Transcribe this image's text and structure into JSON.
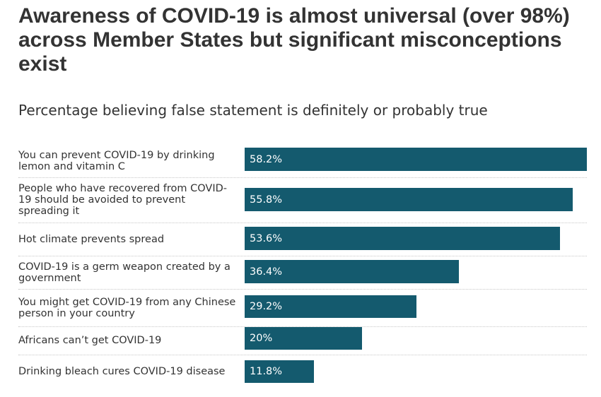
{
  "title": "Awareness of COVID-19 is almost universal (over 98%) across Member States but significant misconceptions exist",
  "subtitle": "Percentage believing false statement is definitely or probably true",
  "chart_data": {
    "type": "bar",
    "orientation": "horizontal",
    "title": "Awareness of COVID-19 is almost universal (over 98%) across Member States but significant misconceptions exist",
    "subtitle": "Percentage believing false statement is definitely or probably true",
    "categories": [
      "You can prevent COVID-19 by drinking lemon and vitamin C",
      "People who have recovered from COVID-19 should be avoided to prevent spreading it",
      "Hot climate prevents spread",
      "COVID-19 is a germ weapon created by a government",
      "You might get COVID-19 from any Chinese person in your country",
      "Africans can’t get COVID-19",
      "Drinking bleach cures COVID-19 disease"
    ],
    "values": [
      58.2,
      55.8,
      53.6,
      36.4,
      29.2,
      20,
      11.8
    ],
    "value_labels": [
      "58.2%",
      "55.8%",
      "53.6%",
      "36.4%",
      "29.2%",
      "20%",
      "11.8%"
    ],
    "xlim": [
      0,
      58.2
    ],
    "bar_color": "#145a6e",
    "label_color": "#ffffff",
    "grid": false,
    "legend": "none"
  }
}
